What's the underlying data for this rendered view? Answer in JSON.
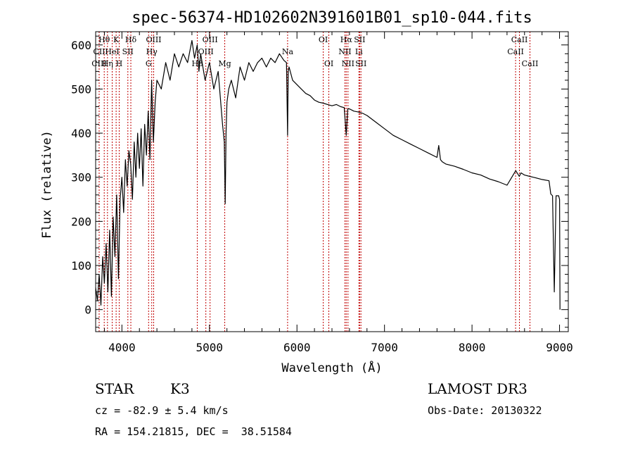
{
  "chart_data": {
    "type": "line",
    "title": "spec-56374-HD102602N391601B01_sp10-044.fits",
    "xlabel": "Wavelength (Å)",
    "ylabel": "Flux (relative)",
    "xlim": [
      3700,
      9100
    ],
    "ylim": [
      -50,
      630
    ],
    "xticks": [
      4000,
      5000,
      6000,
      7000,
      8000,
      9000
    ],
    "yticks": [
      0,
      100,
      200,
      300,
      400,
      500,
      600
    ],
    "grid": false,
    "series": [
      {
        "x": [
          3700,
          3720,
          3740,
          3760,
          3780,
          3800,
          3820,
          3840,
          3860,
          3880,
          3900,
          3920,
          3940,
          3960,
          3980,
          4000,
          4020,
          4040,
          4060,
          4080,
          4100,
          4120,
          4140,
          4160,
          4180,
          4200,
          4220,
          4240,
          4260,
          4280,
          4300,
          4320,
          4340,
          4360,
          4380,
          4400,
          4450,
          4500,
          4550,
          4600,
          4650,
          4700,
          4750,
          4800,
          4830,
          4860,
          4880,
          4900,
          4950,
          5000,
          5050,
          5100,
          5150,
          5170,
          5180,
          5190,
          5200,
          5220,
          5250,
          5300,
          5350,
          5400,
          5450,
          5500,
          5550,
          5600,
          5650,
          5700,
          5750,
          5800,
          5850,
          5880,
          5893,
          5900,
          5910,
          5950,
          6000,
          6050,
          6100,
          6150,
          6200,
          6250,
          6300,
          6350,
          6400,
          6450,
          6500,
          6540,
          6563,
          6580,
          6600,
          6650,
          6700,
          6750,
          6800,
          6900,
          7000,
          7100,
          7200,
          7300,
          7400,
          7500,
          7600,
          7620,
          7640,
          7660,
          7700,
          7800,
          7900,
          8000,
          8100,
          8200,
          8300,
          8400,
          8500,
          8540,
          8560,
          8600,
          8660,
          8700,
          8800,
          8880,
          8900,
          8920,
          8940,
          8960,
          8990,
          9000,
          9005
        ],
        "values": [
          50,
          20,
          80,
          10,
          120,
          60,
          150,
          40,
          180,
          30,
          210,
          120,
          260,
          70,
          250,
          300,
          220,
          340,
          280,
          360,
          330,
          250,
          380,
          300,
          400,
          320,
          410,
          280,
          420,
          350,
          450,
          340,
          520,
          380,
          470,
          520,
          500,
          560,
          520,
          580,
          550,
          580,
          560,
          610,
          570,
          600,
          540,
          580,
          520,
          560,
          500,
          540,
          420,
          380,
          240,
          400,
          470,
          500,
          520,
          480,
          550,
          520,
          560,
          540,
          560,
          570,
          550,
          570,
          560,
          580,
          565,
          560,
          395,
          540,
          550,
          520,
          510,
          500,
          490,
          485,
          475,
          470,
          468,
          465,
          462,
          465,
          460,
          458,
          395,
          455,
          455,
          450,
          448,
          445,
          440,
          425,
          410,
          395,
          385,
          375,
          365,
          355,
          345,
          372,
          340,
          335,
          330,
          325,
          318,
          310,
          305,
          296,
          290,
          282,
          315,
          302,
          310,
          305,
          302,
          300,
          295,
          292,
          262,
          258,
          40,
          258,
          258,
          250,
          0
        ]
      }
    ],
    "spectral_lines": [
      {
        "label": "Hθ",
        "wl": 3798,
        "row": 0
      },
      {
        "label": "CII",
        "wl": 3740,
        "row": 1
      },
      {
        "label": "CIII",
        "wl": 3740,
        "row": 2
      },
      {
        "label": "K",
        "wl": 3934,
        "row": 0
      },
      {
        "label": "HeI",
        "wl": 3889,
        "row": 1
      },
      {
        "label": "Hη",
        "wl": 3835,
        "row": 2
      },
      {
        "label": "Hδ",
        "wl": 4102,
        "row": 0
      },
      {
        "label": "SII",
        "wl": 4068,
        "row": 1
      },
      {
        "label": "H",
        "wl": 3969,
        "row": 2
      },
      {
        "label": "OIII",
        "wl": 4363,
        "row": 0
      },
      {
        "label": "Hγ",
        "wl": 4341,
        "row": 1
      },
      {
        "label": "G",
        "wl": 4305,
        "row": 2
      },
      {
        "label": "OIII",
        "wl": 5007,
        "row": 0
      },
      {
        "label": "OIII",
        "wl": 4959,
        "row": 1
      },
      {
        "label": "Hβ",
        "wl": 4861,
        "row": 2
      },
      {
        "label": "Mg",
        "wl": 5175,
        "row": 2
      },
      {
        "label": "Na",
        "wl": 5893,
        "row": 1
      },
      {
        "label": "OI",
        "wl": 6300,
        "row": 0
      },
      {
        "label": "OI",
        "wl": 6364,
        "row": 2
      },
      {
        "label": "Hα",
        "wl": 6563,
        "row": 0
      },
      {
        "label": "NII",
        "wl": 6548,
        "row": 1
      },
      {
        "label": "NII",
        "wl": 6583,
        "row": 2
      },
      {
        "label": "SII",
        "wl": 6716,
        "row": 0
      },
      {
        "label": "Li",
        "wl": 6708,
        "row": 1
      },
      {
        "label": "SII",
        "wl": 6731,
        "row": 2
      },
      {
        "label": "CaII",
        "wl": 8542,
        "row": 0
      },
      {
        "label": "CaII",
        "wl": 8498,
        "row": 1
      },
      {
        "label": "CaII",
        "wl": 8662,
        "row": 2
      }
    ],
    "line_marker_color": "#c00000"
  },
  "info": {
    "object_class": "STAR",
    "subclass": "K3",
    "survey": "LAMOST DR3",
    "cz": "cz = -82.9 ± 5.4 km/s",
    "obs_date": "Obs-Date: 20130322",
    "coords": "RA = 154.21815, DEC =  38.51584"
  }
}
